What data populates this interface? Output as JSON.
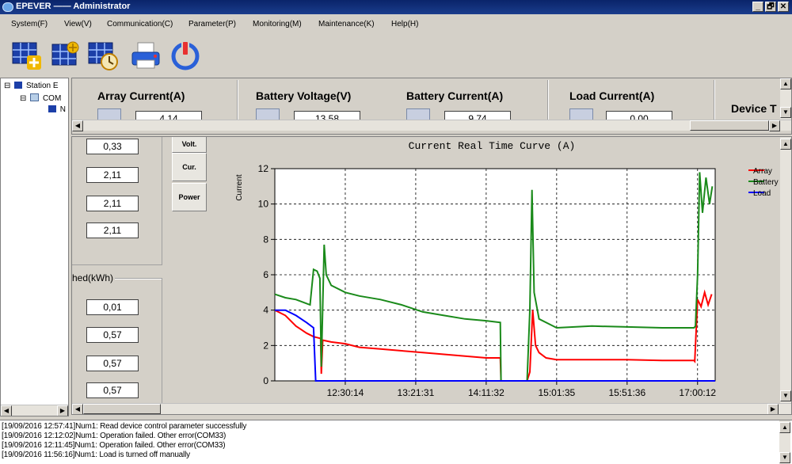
{
  "window": {
    "title": "EPEVER —— Administrator",
    "buttons": [
      "_",
      "🗗",
      "✕"
    ]
  },
  "menu": [
    "System(F)",
    "View(V)",
    "Communication(C)",
    "Parameter(P)",
    "Monitoring(M)",
    "Maintenance(K)",
    "Help(H)"
  ],
  "toolbar": {
    "icons": [
      "add-station-icon",
      "station-settings-icon",
      "station-clock-icon",
      "printer-icon",
      "power-icon"
    ]
  },
  "tree": {
    "nodes": [
      {
        "label": "Station E",
        "expander": "⊟"
      },
      {
        "label": "COM",
        "expander": "⊟"
      },
      {
        "label": "N",
        "expander": ""
      }
    ]
  },
  "sensors": [
    {
      "title": "Array Current(A)",
      "value": "4.14"
    },
    {
      "title": "Battery Voltage(V)",
      "value": "13.58"
    },
    {
      "title": "Battery Current(A)",
      "value": "9.74"
    },
    {
      "title": "Load Current(A)",
      "value": "0.00"
    },
    {
      "title": "Device T",
      "value": ""
    }
  ],
  "left_values": {
    "upper": [
      "0,33",
      "2,11",
      "2,11",
      "2,11"
    ],
    "group_label": "hed(kWh)",
    "lower": [
      "0,01",
      "0,57",
      "0,57",
      "0,57"
    ]
  },
  "side_tabs": [
    "Volt.",
    "Cur.",
    "Power"
  ],
  "chart_data": {
    "type": "line",
    "title": "Current Real Time Curve  (A)",
    "ylabel": "Current",
    "xlabel": "",
    "ylim": [
      0,
      12
    ],
    "yticks": [
      0,
      2,
      4,
      6,
      8,
      10,
      12
    ],
    "x_tick_labels": [
      "12:30:14",
      "13:21:31",
      "14:11:32",
      "15:01:35",
      "15:51:36",
      "17:00:12"
    ],
    "x_tick_positions": [
      1,
      2,
      3,
      4,
      5,
      6
    ],
    "xlim": [
      0,
      6.25
    ],
    "grid": true,
    "legend_position": "top-right",
    "series": [
      {
        "name": "Array",
        "color": "#ff0000",
        "points": [
          [
            0,
            4.0
          ],
          [
            0.15,
            3.7
          ],
          [
            0.3,
            3.1
          ],
          [
            0.45,
            2.7
          ],
          [
            0.55,
            2.5
          ],
          [
            0.65,
            2.4
          ],
          [
            0.66,
            0.4
          ],
          [
            0.68,
            2.3
          ],
          [
            0.8,
            2.2
          ],
          [
            1.0,
            2.1
          ],
          [
            1.2,
            1.9
          ],
          [
            1.5,
            1.8
          ],
          [
            1.8,
            1.7
          ],
          [
            2.1,
            1.6
          ],
          [
            2.4,
            1.5
          ],
          [
            2.7,
            1.4
          ],
          [
            3.0,
            1.3
          ],
          [
            3.2,
            1.3
          ],
          [
            3.21,
            0
          ],
          [
            3.58,
            0
          ],
          [
            3.62,
            0.5
          ],
          [
            3.66,
            4.0
          ],
          [
            3.7,
            2.0
          ],
          [
            3.75,
            1.6
          ],
          [
            3.85,
            1.3
          ],
          [
            4.0,
            1.2
          ],
          [
            4.5,
            1.2
          ],
          [
            5.0,
            1.2
          ],
          [
            5.5,
            1.15
          ],
          [
            5.95,
            1.15
          ],
          [
            5.96,
            1.1
          ],
          [
            6.0,
            4.6
          ],
          [
            6.05,
            4.2
          ],
          [
            6.1,
            5.0
          ],
          [
            6.15,
            4.3
          ],
          [
            6.2,
            4.9
          ]
        ]
      },
      {
        "name": "Battery",
        "color": "#1a8a1a",
        "points": [
          [
            0,
            4.9
          ],
          [
            0.15,
            4.7
          ],
          [
            0.3,
            4.6
          ],
          [
            0.5,
            4.3
          ],
          [
            0.55,
            6.3
          ],
          [
            0.6,
            6.2
          ],
          [
            0.64,
            5.8
          ],
          [
            0.66,
            0.8
          ],
          [
            0.7,
            7.7
          ],
          [
            0.73,
            6.0
          ],
          [
            0.8,
            5.4
          ],
          [
            1.0,
            5.0
          ],
          [
            1.2,
            4.8
          ],
          [
            1.5,
            4.6
          ],
          [
            1.8,
            4.3
          ],
          [
            2.1,
            3.9
          ],
          [
            2.4,
            3.7
          ],
          [
            2.7,
            3.5
          ],
          [
            3.0,
            3.4
          ],
          [
            3.2,
            3.3
          ],
          [
            3.21,
            0
          ],
          [
            3.58,
            0
          ],
          [
            3.62,
            4.0
          ],
          [
            3.65,
            10.8
          ],
          [
            3.68,
            5.0
          ],
          [
            3.75,
            3.5
          ],
          [
            3.9,
            3.2
          ],
          [
            4.0,
            3.0
          ],
          [
            4.5,
            3.1
          ],
          [
            5.0,
            3.05
          ],
          [
            5.5,
            3.0
          ],
          [
            5.95,
            3.0
          ],
          [
            5.97,
            3.1
          ],
          [
            6.0,
            6.0
          ],
          [
            6.03,
            11.8
          ],
          [
            6.07,
            9.5
          ],
          [
            6.12,
            11.5
          ],
          [
            6.17,
            10.0
          ],
          [
            6.21,
            11.0
          ]
        ]
      },
      {
        "name": "Load",
        "color": "#0000ff",
        "points": [
          [
            0,
            4.0
          ],
          [
            0.15,
            4.0
          ],
          [
            0.3,
            3.7
          ],
          [
            0.45,
            3.3
          ],
          [
            0.55,
            3.0
          ],
          [
            0.58,
            0
          ],
          [
            6.25,
            0
          ]
        ]
      }
    ]
  },
  "log": [
    "[19/09/2016 12:57:41]Num1: Read device control parameter successfully",
    "[19/09/2016 12:12:02]Num1: Operation failed. Other error(COM33)",
    "[19/09/2016 12:11:45]Num1: Operation failed. Other error(COM33)",
    "[19/09/2016 11:56:16]Num1: Load is turned off manually"
  ]
}
